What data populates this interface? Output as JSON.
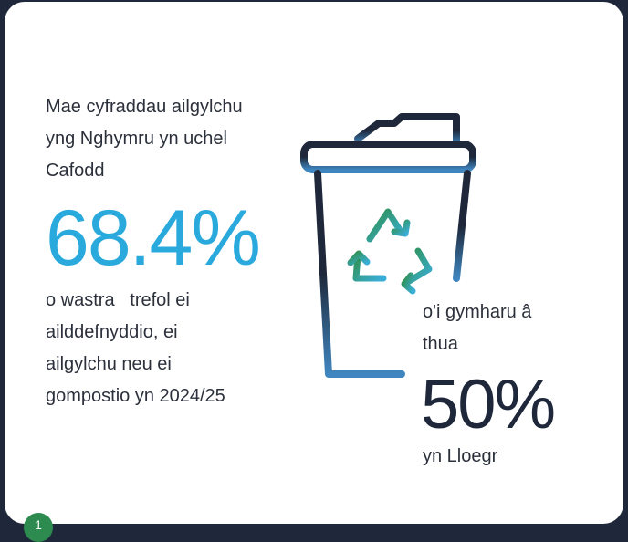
{
  "intro": {
    "lines": [
      "Mae cyfraddau ailgylchu",
      "yng Nghymru yn uchel",
      "Cafodd"
    ]
  },
  "wales_stat": {
    "value": "68.4%",
    "lines": [
      "o wastra   trefol ei",
      "ailddefnyddio, ei",
      "ailgylchu neu ei",
      "gompostio yn 2024/25"
    ]
  },
  "england_stat": {
    "lead_lines": [
      "o'i gymharu â",
      "thua"
    ],
    "value": "50%",
    "tail": "yn Lloegr"
  },
  "badge": "1"
}
